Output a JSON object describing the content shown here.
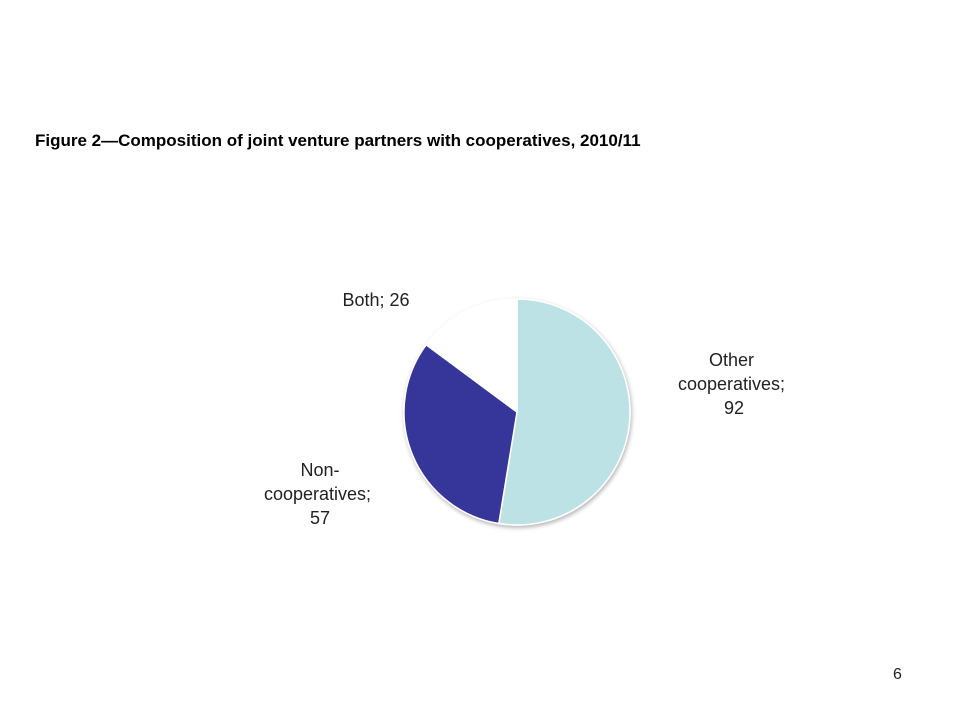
{
  "chart_data": {
    "type": "pie",
    "title": "Figure 2—Composition of joint venture partners with cooperatives, 2010/11",
    "categories": [
      "Other cooperatives",
      "Non-cooperatives",
      "Both"
    ],
    "values": [
      92,
      57,
      26
    ],
    "value_labels": [
      "Other cooperatives; 92",
      "Non-cooperatives; 57",
      "Both; 26"
    ],
    "colors": [
      "#bde2e6",
      "#35349a",
      "#ffffff"
    ]
  },
  "page_number": 6
}
